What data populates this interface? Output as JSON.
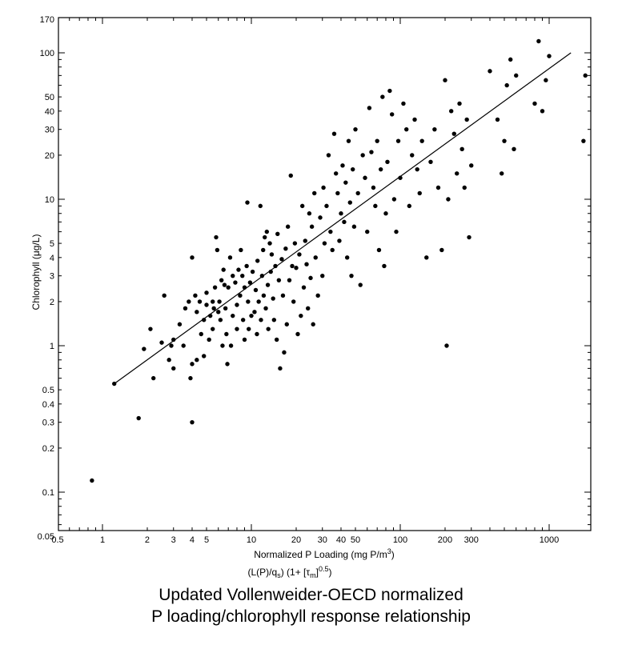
{
  "chart_data": {
    "type": "scatter",
    "title": "",
    "xlabel": "Normalized P Loading (mg P/m",
    "xlabel_sup": "3",
    "xlabel_close": ")",
    "xlabel_formula": {
      "part1": "(L(P)/q",
      "part1_sub": "s",
      "part2": ")   (1+ [τ",
      "part2_sub": "m",
      "part3": "]",
      "part3_sup": "0.5",
      "part4": ")"
    },
    "ylabel": "Chlorophyll (μg/L)",
    "x_scale": "log",
    "y_scale": "log",
    "xlim": [
      0.5,
      1800
    ],
    "ylim": [
      0.05,
      170
    ],
    "grid": false,
    "x_tick_labels": [
      {
        "v": 0.5,
        "t": "0.5"
      },
      {
        "v": 1,
        "t": "1"
      },
      {
        "v": 2,
        "t": "2"
      },
      {
        "v": 3,
        "t": "3"
      },
      {
        "v": 4,
        "t": "4"
      },
      {
        "v": 5,
        "t": "5"
      },
      {
        "v": 10,
        "t": "10"
      },
      {
        "v": 20,
        "t": "20"
      },
      {
        "v": 30,
        "t": "30"
      },
      {
        "v": 40,
        "t": "40"
      },
      {
        "v": 50,
        "t": "50"
      },
      {
        "v": 100,
        "t": "100"
      },
      {
        "v": 200,
        "t": "200"
      },
      {
        "v": 300,
        "t": "300"
      },
      {
        "v": 1000,
        "t": "1000"
      }
    ],
    "y_tick_labels": [
      {
        "v": 0.05,
        "t": "0.05"
      },
      {
        "v": 0.1,
        "t": "0.1"
      },
      {
        "v": 0.2,
        "t": "0.2"
      },
      {
        "v": 0.3,
        "t": "0.3"
      },
      {
        "v": 0.4,
        "t": "0.4"
      },
      {
        "v": 0.5,
        "t": "0.5"
      },
      {
        "v": 1,
        "t": "1"
      },
      {
        "v": 2,
        "t": "2"
      },
      {
        "v": 3,
        "t": "3"
      },
      {
        "v": 4,
        "t": "4"
      },
      {
        "v": 5,
        "t": "5"
      },
      {
        "v": 10,
        "t": "10"
      },
      {
        "v": 20,
        "t": "20"
      },
      {
        "v": 30,
        "t": "30"
      },
      {
        "v": 40,
        "t": "40"
      },
      {
        "v": 50,
        "t": "50"
      },
      {
        "v": 100,
        "t": "100"
      },
      {
        "v": 170,
        "t": "170"
      }
    ],
    "regression_line": {
      "x": [
        1.2,
        1400
      ],
      "y": [
        0.55,
        100
      ]
    },
    "points": [
      [
        0.85,
        0.12
      ],
      [
        1.2,
        0.55
      ],
      [
        1.75,
        0.32
      ],
      [
        1.9,
        0.95
      ],
      [
        2.1,
        1.3
      ],
      [
        2.2,
        0.6
      ],
      [
        2.5,
        1.05
      ],
      [
        2.6,
        2.2
      ],
      [
        2.8,
        0.8
      ],
      [
        2.9,
        1.0
      ],
      [
        3.0,
        0.7
      ],
      [
        3.0,
        1.1
      ],
      [
        3.3,
        1.4
      ],
      [
        3.5,
        1.0
      ],
      [
        3.6,
        1.8
      ],
      [
        3.8,
        2.0
      ],
      [
        3.9,
        0.6
      ],
      [
        4.0,
        0.3
      ],
      [
        4.0,
        0.75
      ],
      [
        4.0,
        4.0
      ],
      [
        4.2,
        2.2
      ],
      [
        4.3,
        1.7
      ],
      [
        4.3,
        0.8
      ],
      [
        4.5,
        2.0
      ],
      [
        4.6,
        1.2
      ],
      [
        4.8,
        1.5
      ],
      [
        4.8,
        0.85
      ],
      [
        5.0,
        2.3
      ],
      [
        5.0,
        1.9
      ],
      [
        5.2,
        1.1
      ],
      [
        5.3,
        1.6
      ],
      [
        5.5,
        2.0
      ],
      [
        5.5,
        1.3
      ],
      [
        5.6,
        1.8
      ],
      [
        5.7,
        2.5
      ],
      [
        5.8,
        5.5
      ],
      [
        5.9,
        4.5
      ],
      [
        6.0,
        1.7
      ],
      [
        6.1,
        2.0
      ],
      [
        6.2,
        1.5
      ],
      [
        6.3,
        2.8
      ],
      [
        6.4,
        1.0
      ],
      [
        6.5,
        3.3
      ],
      [
        6.6,
        2.6
      ],
      [
        6.7,
        1.8
      ],
      [
        6.8,
        1.2
      ],
      [
        6.9,
        0.75
      ],
      [
        7.0,
        2.5
      ],
      [
        7.2,
        4.0
      ],
      [
        7.3,
        1.0
      ],
      [
        7.5,
        3.0
      ],
      [
        7.5,
        1.6
      ],
      [
        7.8,
        2.7
      ],
      [
        8.0,
        1.9
      ],
      [
        8.0,
        1.3
      ],
      [
        8.2,
        3.3
      ],
      [
        8.4,
        2.2
      ],
      [
        8.5,
        4.5
      ],
      [
        8.7,
        3.0
      ],
      [
        8.8,
        1.5
      ],
      [
        9.0,
        2.5
      ],
      [
        9.0,
        1.1
      ],
      [
        9.3,
        3.5
      ],
      [
        9.4,
        9.5
      ],
      [
        9.5,
        2.0
      ],
      [
        9.6,
        1.3
      ],
      [
        9.8,
        2.7
      ],
      [
        10.0,
        1.6
      ],
      [
        10.2,
        3.2
      ],
      [
        10.5,
        1.7
      ],
      [
        10.7,
        2.4
      ],
      [
        10.9,
        1.2
      ],
      [
        11.0,
        3.8
      ],
      [
        11.2,
        2.0
      ],
      [
        11.5,
        9.0
      ],
      [
        11.6,
        1.5
      ],
      [
        11.8,
        3.0
      ],
      [
        12.0,
        4.5
      ],
      [
        12.1,
        2.2
      ],
      [
        12.3,
        5.5
      ],
      [
        12.5,
        1.8
      ],
      [
        12.7,
        6.0
      ],
      [
        12.9,
        2.6
      ],
      [
        13.0,
        1.3
      ],
      [
        13.3,
        5.0
      ],
      [
        13.5,
        3.2
      ],
      [
        13.7,
        4.2
      ],
      [
        14.0,
        2.1
      ],
      [
        14.2,
        1.5
      ],
      [
        14.5,
        3.5
      ],
      [
        14.8,
        1.1
      ],
      [
        15.0,
        5.8
      ],
      [
        15.3,
        2.8
      ],
      [
        15.6,
        0.7
      ],
      [
        16.0,
        3.9
      ],
      [
        16.3,
        2.2
      ],
      [
        16.6,
        0.9
      ],
      [
        17.0,
        4.6
      ],
      [
        17.3,
        1.4
      ],
      [
        17.6,
        6.5
      ],
      [
        18.0,
        2.8
      ],
      [
        18.4,
        14.5
      ],
      [
        18.8,
        3.5
      ],
      [
        19.2,
        2.0
      ],
      [
        19.6,
        5.0
      ],
      [
        20.0,
        3.4
      ],
      [
        20.5,
        1.2
      ],
      [
        21.0,
        4.2
      ],
      [
        21.5,
        1.6
      ],
      [
        22.0,
        9.0
      ],
      [
        22.5,
        2.5
      ],
      [
        23.0,
        5.2
      ],
      [
        23.5,
        3.6
      ],
      [
        24.0,
        1.8
      ],
      [
        24.5,
        8.0
      ],
      [
        25.0,
        2.9
      ],
      [
        25.5,
        6.5
      ],
      [
        26.0,
        1.4
      ],
      [
        26.5,
        11.0
      ],
      [
        27.0,
        4.0
      ],
      [
        28.0,
        2.2
      ],
      [
        29.0,
        7.5
      ],
      [
        30.0,
        3.0
      ],
      [
        30.5,
        12.0
      ],
      [
        31.0,
        5.0
      ],
      [
        32.0,
        9.0
      ],
      [
        33.0,
        20.0
      ],
      [
        34.0,
        6.0
      ],
      [
        35.0,
        4.5
      ],
      [
        36.0,
        28.0
      ],
      [
        37.0,
        15.0
      ],
      [
        38.0,
        11.0
      ],
      [
        39.0,
        5.2
      ],
      [
        40.0,
        8.0
      ],
      [
        41.0,
        17.0
      ],
      [
        42.0,
        7.0
      ],
      [
        43.0,
        13.0
      ],
      [
        44.0,
        4.0
      ],
      [
        45.0,
        25.0
      ],
      [
        46.0,
        9.5
      ],
      [
        47.0,
        3.0
      ],
      [
        48.0,
        16.0
      ],
      [
        49.0,
        6.5
      ],
      [
        50.0,
        30.0
      ],
      [
        52.0,
        11.0
      ],
      [
        54.0,
        2.6
      ],
      [
        56.0,
        20.0
      ],
      [
        58.0,
        14.0
      ],
      [
        60.0,
        6.0
      ],
      [
        62.0,
        42.0
      ],
      [
        64.0,
        21.0
      ],
      [
        66.0,
        12.0
      ],
      [
        68.0,
        9.0
      ],
      [
        70.0,
        25.0
      ],
      [
        72.0,
        4.5
      ],
      [
        74.0,
        16.0
      ],
      [
        76.0,
        50.0
      ],
      [
        78.0,
        3.5
      ],
      [
        80.0,
        8.0
      ],
      [
        82.0,
        18.0
      ],
      [
        85.0,
        55.0
      ],
      [
        88.0,
        38.0
      ],
      [
        91.0,
        10.0
      ],
      [
        94.0,
        6.0
      ],
      [
        97.0,
        25.0
      ],
      [
        100.0,
        14.0
      ],
      [
        105.0,
        45.0
      ],
      [
        110.0,
        30.0
      ],
      [
        115.0,
        9.0
      ],
      [
        120.0,
        20.0
      ],
      [
        125.0,
        35.0
      ],
      [
        130.0,
        16.0
      ],
      [
        135.0,
        11.0
      ],
      [
        140.0,
        25.0
      ],
      [
        150.0,
        4.0
      ],
      [
        160.0,
        18.0
      ],
      [
        170.0,
        30.0
      ],
      [
        180.0,
        12.0
      ],
      [
        190.0,
        4.5
      ],
      [
        200.0,
        65.0
      ],
      [
        205.0,
        1.0
      ],
      [
        210.0,
        10.0
      ],
      [
        220.0,
        40.0
      ],
      [
        230.0,
        28.0
      ],
      [
        240.0,
        15.0
      ],
      [
        250.0,
        45.0
      ],
      [
        260.0,
        22.0
      ],
      [
        270.0,
        12.0
      ],
      [
        280.0,
        35.0
      ],
      [
        290.0,
        5.5
      ],
      [
        300.0,
        17.0
      ],
      [
        400.0,
        75.0
      ],
      [
        450.0,
        35.0
      ],
      [
        480.0,
        15.0
      ],
      [
        500.0,
        25.0
      ],
      [
        520.0,
        60.0
      ],
      [
        550.0,
        90.0
      ],
      [
        580.0,
        22.0
      ],
      [
        600.0,
        70.0
      ],
      [
        800.0,
        45.0
      ],
      [
        850.0,
        120.0
      ],
      [
        900.0,
        40.0
      ],
      [
        950.0,
        65.0
      ],
      [
        1000.0,
        95.0
      ],
      [
        1700.0,
        25.0
      ],
      [
        1750.0,
        70.0
      ]
    ]
  },
  "caption": {
    "line1": "Updated Vollenweider-OECD normalized",
    "line2": "P loading/chlorophyll response relationship"
  }
}
